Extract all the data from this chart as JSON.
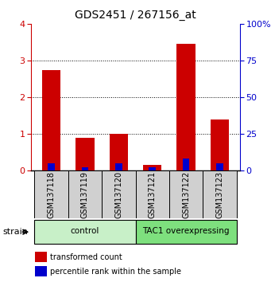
{
  "title": "GDS2451 / 267156_at",
  "samples": [
    "GSM137118",
    "GSM137119",
    "GSM137120",
    "GSM137121",
    "GSM137122",
    "GSM137123"
  ],
  "red_values": [
    2.75,
    0.9,
    1.0,
    0.15,
    3.45,
    1.4
  ],
  "blue_values_pct": [
    5,
    2,
    5,
    2,
    8,
    5
  ],
  "ylim_left": [
    0,
    4
  ],
  "ylim_right": [
    0,
    100
  ],
  "yticks_left": [
    0,
    1,
    2,
    3,
    4
  ],
  "yticks_right": [
    0,
    25,
    50,
    75,
    100
  ],
  "yticklabels_right": [
    "0",
    "25",
    "50",
    "75",
    "100%"
  ],
  "groups": [
    {
      "label": "control",
      "indices": [
        0,
        1,
        2
      ],
      "color": "#c8f0c8"
    },
    {
      "label": "TAC1 overexpressing",
      "indices": [
        3,
        4,
        5
      ],
      "color": "#7ee07e"
    }
  ],
  "red_color": "#cc0000",
  "blue_color": "#0000cc",
  "bar_width": 0.55,
  "blue_bar_width": 0.2,
  "legend_red": "transformed count",
  "legend_blue": "percentile rank within the sample",
  "strain_label": "strain",
  "tick_color_left": "#cc0000",
  "tick_color_right": "#0000cc",
  "grid_color": "#000000",
  "sample_box_color": "#d0d0d0",
  "dotted_gridlines": [
    1,
    2,
    3
  ]
}
